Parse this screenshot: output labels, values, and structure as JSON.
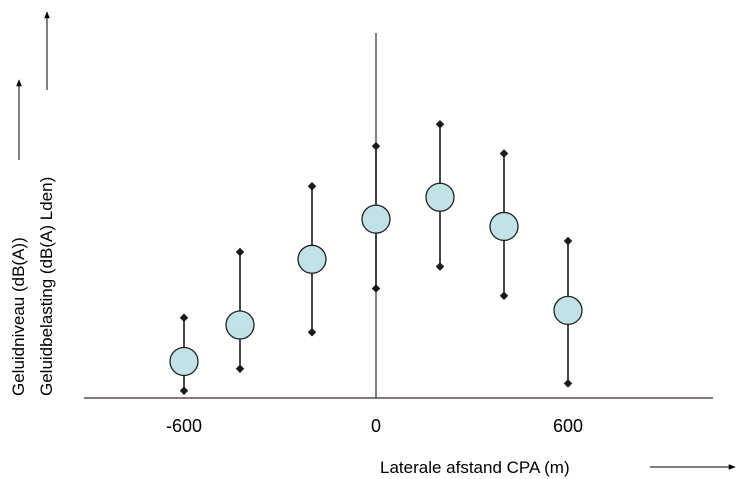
{
  "chart_data": {
    "type": "scatter",
    "xlabel": "Laterale afstand CPA (m)",
    "ylabel_lines": [
      "Geluidniveau (dB(A))",
      "Geluidbelasting (dB(A) Lden)"
    ],
    "x_ticks": [
      -600,
      0,
      600
    ],
    "x_tick_labels": [
      "-600",
      "0",
      "600"
    ],
    "xlim": [
      -900,
      1000
    ],
    "ylim": [
      0,
      100
    ],
    "grid": false,
    "series": [
      {
        "points": [
          {
            "x": -600,
            "y": 10,
            "low": 2,
            "high": 22
          },
          {
            "x": -425,
            "y": 20,
            "low": 8,
            "high": 40
          },
          {
            "x": -200,
            "y": 38,
            "low": 18,
            "high": 58
          },
          {
            "x": 0,
            "y": 49,
            "low": 30,
            "high": 69
          },
          {
            "x": 200,
            "y": 55,
            "low": 36,
            "high": 75
          },
          {
            "x": 400,
            "y": 47,
            "low": 28,
            "high": 67
          },
          {
            "x": 600,
            "y": 24,
            "low": 4,
            "high": 43
          }
        ]
      }
    ],
    "colors": {
      "marker_fill": "#bfe3e6",
      "marker_stroke": "#222222",
      "errorbar": "#1a1a1a",
      "axis": "#3a2a2a"
    }
  }
}
